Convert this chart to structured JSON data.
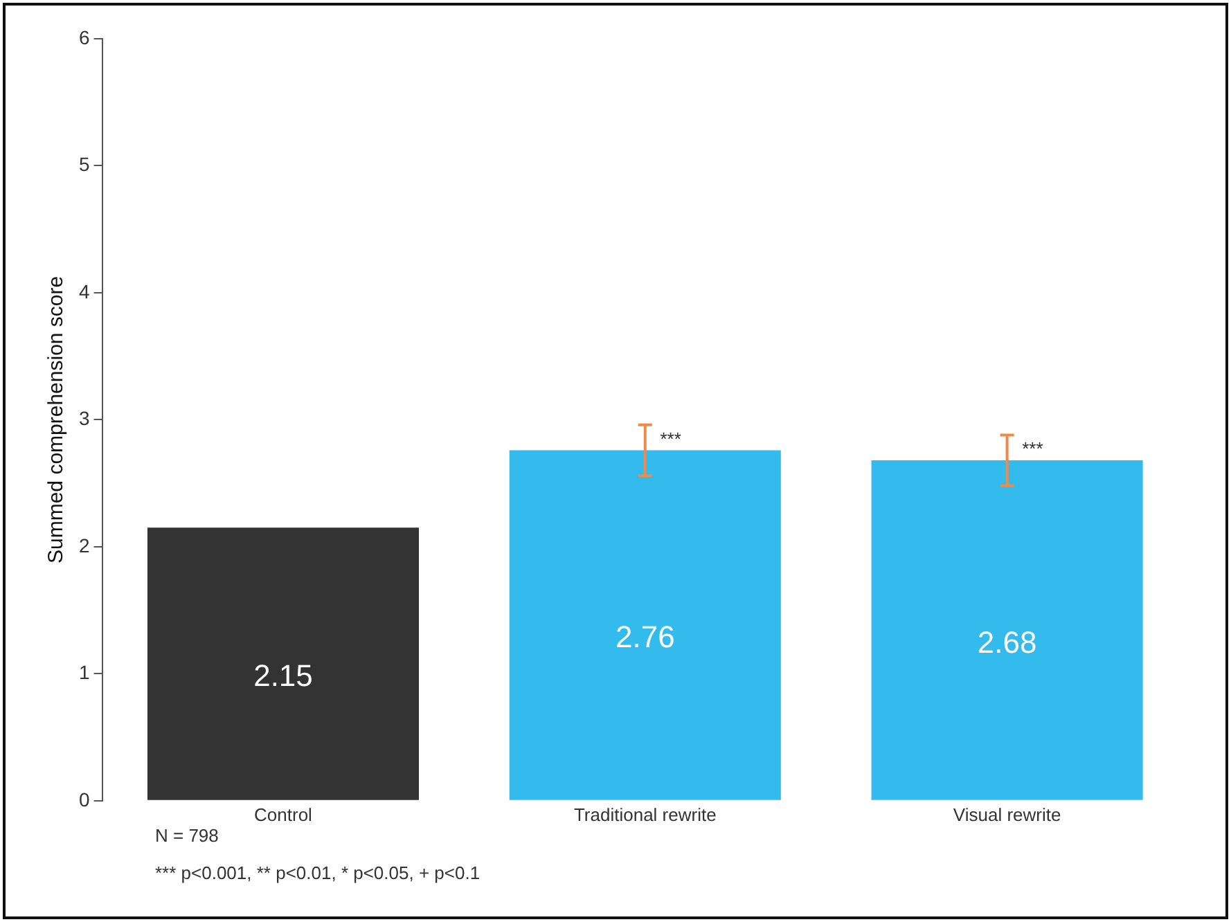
{
  "chart_data": {
    "type": "bar",
    "ylabel": "Summed comprehension score",
    "categories": [
      "Control",
      "Traditional rewrite",
      "Visual rewrite"
    ],
    "values": [
      2.15,
      2.76,
      2.68
    ],
    "colors": [
      "#333333",
      "#33bbee",
      "#33bbee"
    ],
    "errors": [
      null,
      [
        2.56,
        2.96
      ],
      [
        2.48,
        2.88
      ]
    ],
    "ylim": [
      0,
      6
    ],
    "yticks": [
      0,
      1,
      2,
      3,
      4,
      5,
      6
    ],
    "grid": false,
    "legend": false,
    "data_labels": true,
    "annotations": [
      {
        "text": "***",
        "x": "Traditional rewrite",
        "y": 2.76
      },
      {
        "text": "***",
        "x": "Visual rewrite",
        "y": 2.68
      },
      "N = 798",
      "*** p<0.001, ** p<0.01, * p<0.05, + p<0.1"
    ]
  }
}
